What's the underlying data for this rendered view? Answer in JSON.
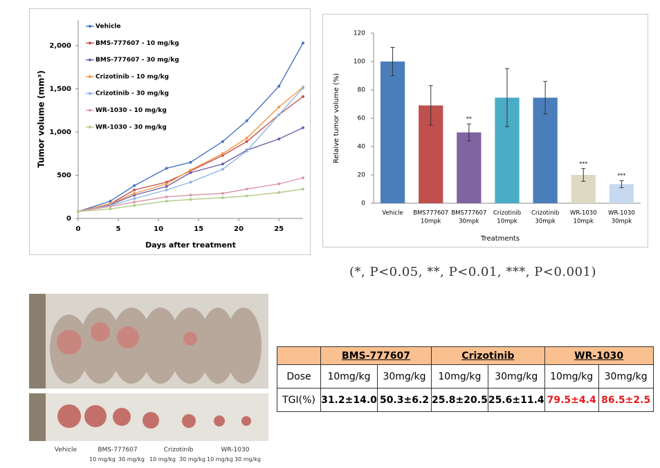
{
  "chart_data": [
    {
      "type": "line",
      "xlabel": "Days after treatment",
      "ylabel": "Tumor volume (mm³)",
      "x": [
        0,
        4,
        7,
        11,
        14,
        18,
        21,
        25,
        28
      ],
      "xlim": [
        0,
        28
      ],
      "xticks": [
        0,
        5,
        10,
        15,
        20,
        25
      ],
      "ylim": [
        0,
        2300
      ],
      "yticks": [
        0,
        500,
        {
          "value": 1000,
          "label": "1,000"
        },
        {
          "value": 1500,
          "label": "1,500"
        },
        {
          "value": 2000,
          "label": "2,000"
        }
      ],
      "series": [
        {
          "name": "Vehicle",
          "color": "#4472c4",
          "values": [
            80,
            200,
            380,
            580,
            650,
            890,
            1130,
            1530,
            2030
          ]
        },
        {
          "name": "BMS-777607 - 10 mg/kg",
          "color": "#c0504d",
          "values": [
            80,
            170,
            330,
            420,
            550,
            730,
            890,
            1200,
            1410
          ]
        },
        {
          "name": "BMS-777607 - 30 mg/kg",
          "color": "#6a5fa8",
          "values": [
            80,
            160,
            270,
            370,
            530,
            630,
            790,
            920,
            1050
          ]
        },
        {
          "name": "Crizotinib - 10 mg/kg",
          "color": "#f79646",
          "values": [
            80,
            170,
            290,
            400,
            560,
            750,
            930,
            1290,
            1520
          ]
        },
        {
          "name": "Crizotinib - 30 mg/kg",
          "color": "#8fb4e3",
          "values": [
            80,
            150,
            230,
            330,
            420,
            570,
            780,
            1200,
            1510
          ]
        },
        {
          "name": "WR-1030 - 10 mg/kg",
          "color": "#d99aa8",
          "values": [
            80,
            140,
            190,
            250,
            270,
            290,
            340,
            400,
            470
          ]
        },
        {
          "name": "WR-1030 - 30 mg/kg",
          "color": "#b5cc8a",
          "values": [
            80,
            110,
            150,
            200,
            220,
            240,
            260,
            300,
            340
          ]
        }
      ]
    },
    {
      "type": "bar",
      "xlabel": "Treatments",
      "ylabel": "Relaive tumor volume (%)",
      "categories": [
        [
          "Vehicle"
        ],
        [
          "BMS777607",
          "10mpk"
        ],
        [
          "BMS777607",
          "30mpk"
        ],
        [
          "Crizotinib",
          "10mpk"
        ],
        [
          "Crizotinib",
          "30mpk"
        ],
        [
          "WR-1030",
          "10mpk"
        ],
        [
          "WR-1030",
          "30mpk"
        ]
      ],
      "values": [
        100,
        69,
        50,
        74.5,
        74.5,
        20,
        13.5
      ],
      "errors": [
        10,
        14,
        6,
        20.5,
        11.5,
        4.5,
        2.5
      ],
      "colors": [
        "#4a7ebb",
        "#c0504d",
        "#8064a2",
        "#4bacc6",
        "#4a7ebb",
        "#ddd9c3",
        "#c6d9f1"
      ],
      "significance": [
        null,
        null,
        "**",
        null,
        null,
        "***",
        "***"
      ],
      "ylim": [
        0,
        120
      ],
      "yticks": [
        0,
        20,
        40,
        60,
        80,
        100,
        120
      ]
    }
  ],
  "footnote": "(*, P<0.05, **, P<0.01, ***, P<0.001)",
  "photo": {
    "groups": [
      "Vehicle",
      "BMS-777607",
      "Crizotinib",
      "WR-1030"
    ],
    "doses": [
      "10 mg/kg",
      "30 mg/kg",
      "10 mg/kg",
      "30 mg/kg",
      "10 mg/kg",
      "30 mg/kg"
    ]
  },
  "table": {
    "header": [
      "BMS-777607",
      "Crizotinib",
      "WR-1030"
    ],
    "rows": [
      [
        "Dose",
        "10mg/kg",
        "30mg/kg",
        "10mg/kg",
        "30mg/kg",
        "10mg/kg",
        "30mg/kg"
      ],
      [
        "TGI(%)",
        "31.2±14.0",
        "50.3±6.2",
        "25.8±20.5",
        "25.6±11.4",
        "79.5±4.4",
        "86.5±2.5"
      ]
    ]
  }
}
